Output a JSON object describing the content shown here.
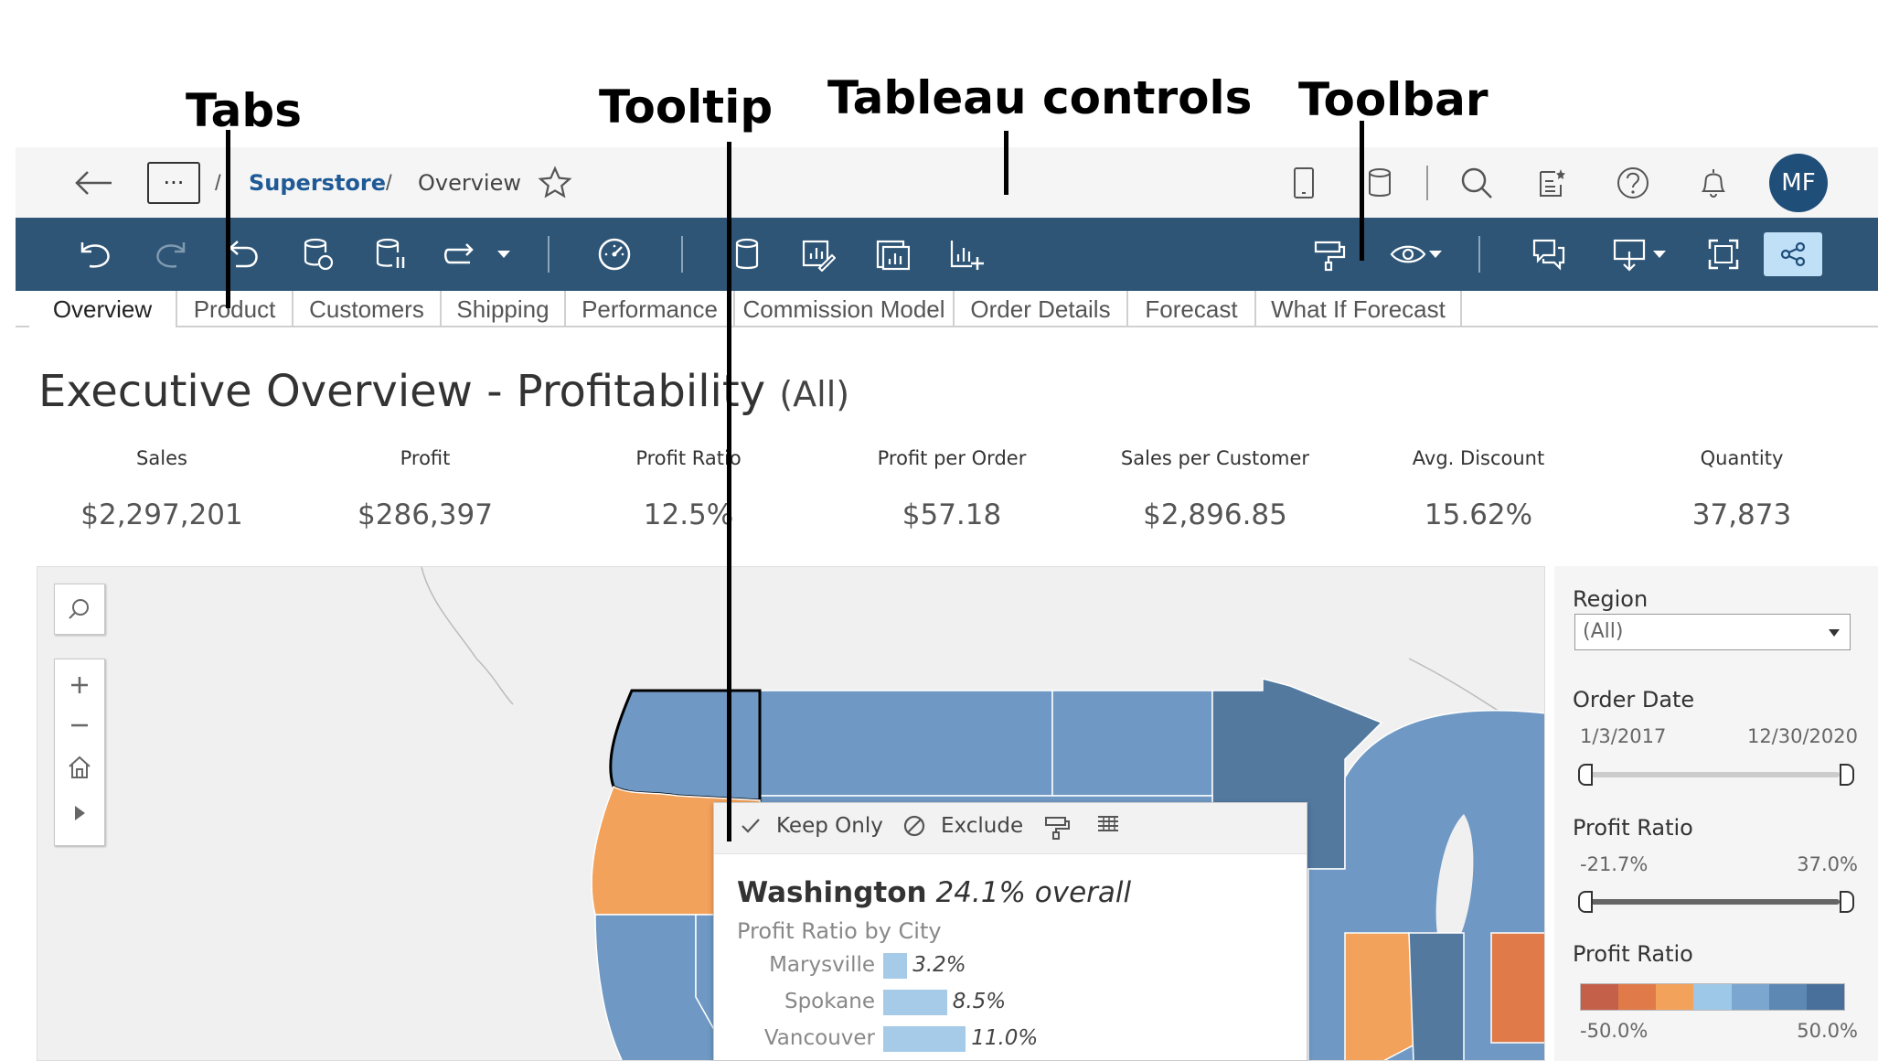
{
  "annotations": {
    "tabs": "Tabs",
    "tooltip": "Tooltip",
    "tableau_controls": "Tableau controls",
    "toolbar": "Toolbar"
  },
  "header": {
    "more_label": "···",
    "breadcrumb_sep": "/",
    "breadcrumb_project": "Superstore",
    "breadcrumb_view": "Overview",
    "avatar_initials": "MF"
  },
  "tabs": [
    {
      "label": "Overview"
    },
    {
      "label": "Product"
    },
    {
      "label": "Customers"
    },
    {
      "label": "Shipping"
    },
    {
      "label": "Performance"
    },
    {
      "label": "Commission Model"
    },
    {
      "label": "Order Details"
    },
    {
      "label": "Forecast"
    },
    {
      "label": "What If Forecast"
    }
  ],
  "dashboard": {
    "title": "Executive Overview - Profitability",
    "title_suffix": "(All)"
  },
  "kpis": [
    {
      "label": "Sales",
      "value": "$2,297,201"
    },
    {
      "label": "Profit",
      "value": "$286,397"
    },
    {
      "label": "Profit Ratio",
      "value": "12.5%"
    },
    {
      "label": "Profit per Order",
      "value": "$57.18"
    },
    {
      "label": "Sales per Customer",
      "value": "$2,896.85"
    },
    {
      "label": "Avg. Discount",
      "value": "15.62%"
    },
    {
      "label": "Quantity",
      "value": "37,873"
    }
  ],
  "tooltip": {
    "keep_only": "Keep Only",
    "exclude": "Exclude",
    "state": "Washington",
    "state_summary": "24.1% overall",
    "subtitle": "Profit Ratio by City",
    "rows": [
      {
        "city": "Marysville",
        "value": "3.2%",
        "ratio": 3.2
      },
      {
        "city": "Spokane",
        "value": "8.5%",
        "ratio": 8.5
      },
      {
        "city": "Vancouver",
        "value": "11.0%",
        "ratio": 11.0
      }
    ]
  },
  "filters": {
    "region_title": "Region",
    "region_value": "(All)",
    "order_date_title": "Order Date",
    "order_date_min": "1/3/2017",
    "order_date_max": "12/30/2020",
    "profit_ratio_title": "Profit Ratio",
    "profit_ratio_min": "-21.7%",
    "profit_ratio_max": "37.0%",
    "legend_title": "Profit Ratio",
    "legend_min": "-50.0%",
    "legend_max": "50.0%"
  },
  "colors": {
    "toolbar_bg": "#2e5576",
    "share_button": "#bfe0f7",
    "avatar_bg": "#1f4e79",
    "map_blue": "#6f99c4",
    "map_blue_dark": "#53799f",
    "map_orange": "#f3a25b",
    "map_orange_dark": "#e07b49",
    "legend": [
      "#c4604a",
      "#e07b49",
      "#f3a25b",
      "#9ec8e8",
      "#7ba6cf",
      "#5e88b4",
      "#48709a"
    ]
  }
}
